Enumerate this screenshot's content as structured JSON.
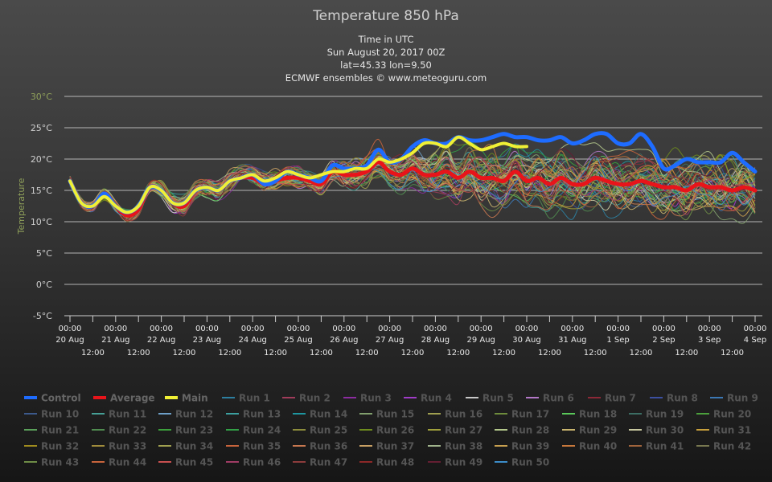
{
  "chart_data": {
    "type": "line",
    "title": "Temperature 850 hPa",
    "subtitle": [
      "Time in UTC",
      "Sun August 20, 2017 00Z",
      "lat=45.33 lon=9.50",
      "ECMWF ensembles © www.meteoguru.com"
    ],
    "ylabel": "Temperature",
    "ylim": [
      -5,
      30
    ],
    "yticks": [
      "-5°C",
      "0°C",
      "5°C",
      "10°C",
      "15°C",
      "20°C",
      "25°C",
      "30°C"
    ],
    "xlim": [
      0,
      15.25
    ],
    "x_unit": "days since 20 Aug 2017 00:00 UTC",
    "xtick_top": [
      "00:00",
      "00:00",
      "00:00",
      "00:00",
      "00:00",
      "00:00",
      "00:00",
      "00:00",
      "00:00",
      "00:00",
      "00:00",
      "00:00",
      "00:00",
      "00:00",
      "00:00",
      "00:00"
    ],
    "xtick_dates": [
      "20 Aug",
      "21 Aug",
      "22 Aug",
      "23 Aug",
      "24 Aug",
      "25 Aug",
      "26 Aug",
      "27 Aug",
      "28 Aug",
      "29 Aug",
      "30 Aug",
      "31 Aug",
      "1 Sep",
      "2 Sep",
      "3 Sep",
      "4 Sep"
    ],
    "xtick_noon": "12:00",
    "grid": true,
    "legend_position": "bottom",
    "colors": {
      "control": "#1e6cff",
      "average": "#e8141a",
      "main": "#f0f035",
      "ylabel": "#8fa05a",
      "grid": "#cccccc"
    },
    "series_main": [
      {
        "name": "Control",
        "color": "#1e6cff",
        "width": 5,
        "x": [
          0,
          0.25,
          0.5,
          0.75,
          1,
          1.25,
          1.5,
          1.75,
          2,
          2.25,
          2.5,
          2.75,
          3,
          3.25,
          3.5,
          3.75,
          4,
          4.25,
          4.5,
          4.75,
          5,
          5.25,
          5.5,
          5.75,
          6,
          6.25,
          6.5,
          6.75,
          7,
          7.25,
          7.5,
          7.75,
          8,
          8.25,
          8.5,
          8.75,
          9,
          9.25,
          9.5,
          9.75,
          10,
          10.25,
          10.5,
          10.75,
          11,
          11.25,
          11.5,
          11.75,
          12,
          12.25,
          12.5,
          12.75,
          13,
          13.25,
          13.5,
          13.75,
          14,
          14.25,
          14.5,
          14.75,
          15
        ],
        "y": [
          16.5,
          13,
          12.5,
          14.5,
          12.5,
          11.5,
          12.5,
          15.5,
          15,
          13,
          13,
          15,
          15.5,
          15,
          16.5,
          17,
          17.5,
          16,
          16.5,
          18,
          17.5,
          17,
          16.5,
          19,
          18.5,
          18.5,
          19,
          21.5,
          19.5,
          20,
          22,
          23,
          22.5,
          22.5,
          23.5,
          23,
          23,
          23.5,
          24,
          23.5,
          23.5,
          23,
          23,
          23.5,
          22.5,
          23,
          24,
          24,
          22.5,
          22.5,
          24,
          22,
          18.5,
          19,
          20,
          19.5,
          19.5,
          19.5,
          21,
          19.5,
          18
        ]
      },
      {
        "name": "Average",
        "color": "#e8141a",
        "width": 5,
        "x": [
          0,
          0.25,
          0.5,
          0.75,
          1,
          1.25,
          1.5,
          1.75,
          2,
          2.25,
          2.5,
          2.75,
          3,
          3.25,
          3.5,
          3.75,
          4,
          4.25,
          4.5,
          4.75,
          5,
          5.25,
          5.5,
          5.75,
          6,
          6.25,
          6.5,
          6.75,
          7,
          7.25,
          7.5,
          7.75,
          8,
          8.25,
          8.5,
          8.75,
          9,
          9.25,
          9.5,
          9.75,
          10,
          10.25,
          10.5,
          10.75,
          11,
          11.25,
          11.5,
          11.75,
          12,
          12.25,
          12.5,
          12.75,
          13,
          13.25,
          13.5,
          13.75,
          14,
          14.25,
          14.5,
          14.75,
          15
        ],
        "y": [
          16.5,
          13,
          12.5,
          14.5,
          12.5,
          11,
          12,
          15.5,
          15,
          13,
          12.5,
          15,
          15.5,
          15,
          16.5,
          17,
          17,
          16,
          16.5,
          17,
          17,
          16.5,
          16,
          18,
          17.5,
          17.5,
          18,
          19.5,
          18,
          17.5,
          18.5,
          17.5,
          17.5,
          18,
          17,
          18,
          17,
          17,
          16.5,
          18,
          16.5,
          17,
          16,
          17,
          16,
          16,
          17,
          16.5,
          16,
          16,
          16.5,
          16,
          15.5,
          15.5,
          15,
          16,
          15.5,
          15.5,
          15,
          15.5,
          15
        ]
      },
      {
        "name": "Main",
        "color": "#f0f035",
        "width": 4,
        "x": [
          0,
          0.25,
          0.5,
          0.75,
          1,
          1.25,
          1.5,
          1.75,
          2,
          2.25,
          2.5,
          2.75,
          3,
          3.25,
          3.5,
          3.75,
          4,
          4.25,
          4.5,
          4.75,
          5,
          5.25,
          5.5,
          5.75,
          6,
          6.25,
          6.5,
          6.75,
          7,
          7.25,
          7.5,
          7.75,
          8,
          8.25,
          8.5,
          8.75,
          9,
          9.25,
          9.5,
          9.75,
          10
        ],
        "y": [
          16.5,
          13,
          12.5,
          14,
          12.5,
          11.5,
          12.5,
          15.5,
          15,
          13,
          13,
          15,
          15.5,
          15,
          16.5,
          17,
          17.5,
          16.5,
          17,
          18,
          17.5,
          17,
          17.5,
          18,
          18,
          18.5,
          18.5,
          20,
          19.5,
          20,
          21,
          22.5,
          22.5,
          22,
          23.5,
          22.5,
          21.5,
          22,
          22.5,
          22,
          22
        ]
      }
    ],
    "legend": [
      "Control",
      "Average",
      "Main",
      "Run 1",
      "Run 2",
      "Run 3",
      "Run 4",
      "Run 5",
      "Run 6",
      "Run 7",
      "Run 8",
      "Run 9",
      "Run 10",
      "Run 11",
      "Run 12",
      "Run 13",
      "Run 14",
      "Run 15",
      "Run 16",
      "Run 17",
      "Run 18",
      "Run 19",
      "Run 20",
      "Run 21",
      "Run 22",
      "Run 23",
      "Run 24",
      "Run 25",
      "Run 26",
      "Run 27",
      "Run 28",
      "Run 29",
      "Run 30",
      "Run 31",
      "Run 32",
      "Run 33",
      "Run 34",
      "Run 35",
      "Run 36",
      "Run 37",
      "Run 38",
      "Run 39",
      "Run 40",
      "Run 41",
      "Run 42",
      "Run 43",
      "Run 44",
      "Run 45",
      "Run 46",
      "Run 47",
      "Run 48",
      "Run 49",
      "Run 50"
    ],
    "legend_colors": [
      "#1e6cff",
      "#e8141a",
      "#f0f035",
      "#2d7fa0",
      "#a03c5a",
      "#8c2ca0",
      "#a03cc8",
      "#c8c8c8",
      "#b478c8",
      "#8c2837",
      "#3c50a0",
      "#3c78b4",
      "#3c5a8c",
      "#46a096",
      "#6ea0c8",
      "#3ca0a0",
      "#1e96a0",
      "#82a06e",
      "#a0a050",
      "#6e8c3c",
      "#5ac85a",
      "#3c6e64",
      "#4ba03c",
      "#5aa05a",
      "#508c50",
      "#3ca03c",
      "#32a046",
      "#8c8c3c",
      "#6e8c1e",
      "#a0a03c",
      "#b4c88c",
      "#c8b46e",
      "#c8c8a0",
      "#c8a03c",
      "#a08c1e",
      "#a08c3c",
      "#a0a050",
      "#c8643c",
      "#c87850",
      "#c8a064",
      "#a0b48c",
      "#c8a050",
      "#c8783c",
      "#a0643c",
      "#787850",
      "#6e8c46",
      "#c8643c",
      "#c85050",
      "#a03c64",
      "#8c3c3c",
      "#8c2828",
      "#641e32",
      "#3c8cc8"
    ]
  }
}
